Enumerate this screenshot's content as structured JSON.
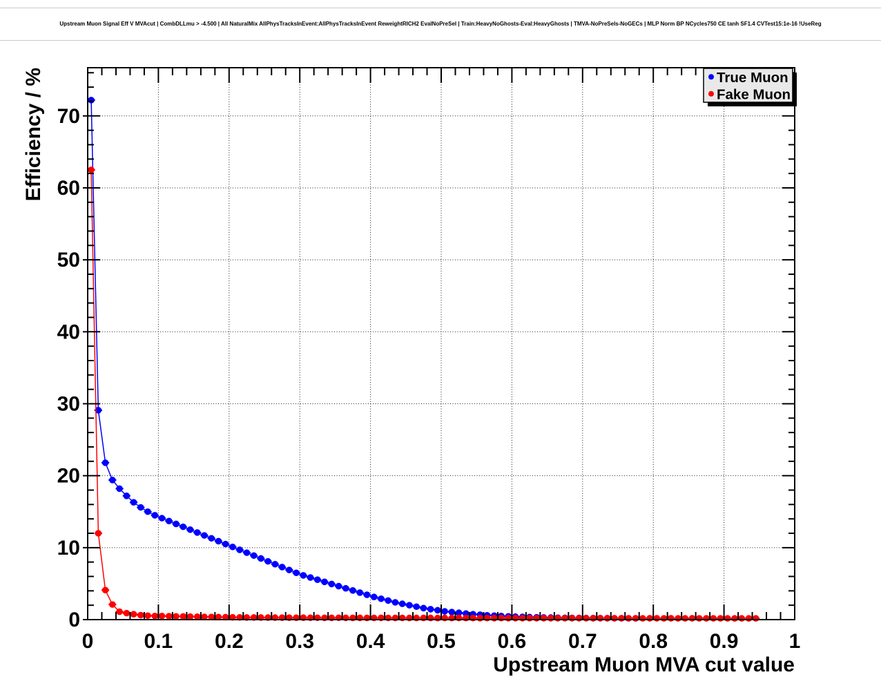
{
  "header": {
    "title": "Upstream Muon Signal Eff V MVAcut | CombDLLmu > -4.500 | All NaturalMix AllPhysTracksInEvent:AllPhysTracksInEvent ReweightRICH2 EvalNoPreSel | Train:HeavyNoGhosts-Eval:HeavyGhosts | TMVA-NoPreSels-NoGECs | MLP Norm BP NCycles750 CE tanh SF1.4 CVTest15:1e-16 !UseReg"
  },
  "chart_data": {
    "type": "scatter",
    "xlabel": "Upstream Muon MVA cut value",
    "ylabel": "Efficiency / %",
    "xlim": [
      0,
      1
    ],
    "ylim": [
      0,
      76.7
    ],
    "xticks": [
      0,
      0.1,
      0.2,
      0.3,
      0.4,
      0.5,
      0.6,
      0.7,
      0.8,
      0.9,
      1
    ],
    "xtick_labels": [
      "0",
      "0.1",
      "0.2",
      "0.3",
      "0.4",
      "0.5",
      "0.6",
      "0.7",
      "0.8",
      "0.9",
      "1"
    ],
    "yticks": [
      0,
      10,
      20,
      30,
      40,
      50,
      60,
      70
    ],
    "ytick_labels": [
      "0",
      "10",
      "20",
      "30",
      "40",
      "50",
      "60",
      "70"
    ],
    "x_minor_step": 0.02,
    "y_minor_step": 2,
    "grid": true,
    "marker": "circle",
    "x_start": 0.005,
    "x_step": 0.01,
    "x_error": 0.005,
    "legend": {
      "position": "top-right",
      "entries": [
        {
          "label": "True Muon",
          "color": "#0000ff"
        },
        {
          "label": "Fake Muon",
          "color": "#ff0000"
        }
      ]
    },
    "series": [
      {
        "name": "True Muon",
        "color": "#0000ff",
        "y": [
          72.2,
          29.1,
          21.8,
          19.4,
          18.2,
          17.2,
          16.3,
          15.6,
          15.0,
          14.5,
          14.1,
          13.7,
          13.3,
          12.9,
          12.5,
          12.1,
          11.7,
          11.3,
          10.9,
          10.5,
          10.1,
          9.7,
          9.3,
          8.9,
          8.5,
          8.1,
          7.7,
          7.3,
          6.9,
          6.5,
          6.15,
          5.85,
          5.55,
          5.25,
          4.95,
          4.65,
          4.35,
          4.05,
          3.75,
          3.45,
          3.15,
          2.9,
          2.65,
          2.4,
          2.2,
          2.0,
          1.8,
          1.6,
          1.45,
          1.3,
          1.15,
          1.05,
          0.95,
          0.85,
          0.75,
          0.68,
          0.6,
          0.55,
          0.5,
          0.45,
          0.41,
          0.38,
          0.35,
          0.32,
          0.3,
          0.28,
          0.26,
          0.25,
          0.24,
          0.23,
          0.22,
          0.21,
          0.2,
          0.2,
          0.19,
          0.18,
          0.18,
          0.17
        ]
      },
      {
        "name": "Fake Muon",
        "color": "#ff0000",
        "y": [
          62.5,
          12.0,
          4.1,
          2.1,
          1.1,
          0.9,
          0.75,
          0.62,
          0.55,
          0.5,
          0.5,
          0.48,
          0.45,
          0.44,
          0.42,
          0.4,
          0.38,
          0.37,
          0.35,
          0.34,
          0.32,
          0.31,
          0.3,
          0.3,
          0.29,
          0.28,
          0.28,
          0.27,
          0.27,
          0.26,
          0.27,
          0.26,
          0.26,
          0.25,
          0.25,
          0.26,
          0.25,
          0.24,
          0.25,
          0.24,
          0.24,
          0.25,
          0.24,
          0.23,
          0.24,
          0.23,
          0.23,
          0.24,
          0.23,
          0.22,
          0.23,
          0.22,
          0.23,
          0.22,
          0.22,
          0.21,
          0.22,
          0.21,
          0.22,
          0.21,
          0.21,
          0.2,
          0.21,
          0.2,
          0.21,
          0.2,
          0.2,
          0.21,
          0.2,
          0.2,
          0.2,
          0.19,
          0.2,
          0.19,
          0.19,
          0.2,
          0.19,
          0.19,
          0.18,
          0.19,
          0.19,
          0.18,
          0.19,
          0.18,
          0.18,
          0.19,
          0.18,
          0.18,
          0.18,
          0.18,
          0.18,
          0.17,
          0.18,
          0.17,
          0.18
        ]
      }
    ],
    "style": {
      "frame_color": "#000000",
      "grid_color": "#000000",
      "text_color": "#000000",
      "legend_bg": "#e9e9e9",
      "legend_border": "#000000",
      "legend_shadow": "#000000",
      "background": "#ffffff"
    }
  }
}
